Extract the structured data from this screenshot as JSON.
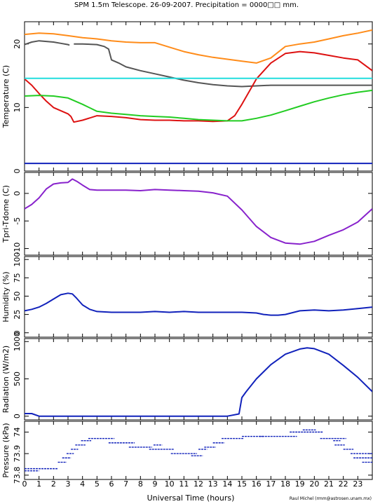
{
  "title": "SPM 1.5m Telescope. 26-09-2007. Precipitation = 0000□□ mm.",
  "credit": "Raul Michel (rmm@astrosen.unam.mx)",
  "xlabel": "Universal Time (hours)",
  "chart_data": [
    {
      "type": "line",
      "ylabel": "Temperature (C)",
      "xlim": [
        0,
        24
      ],
      "ylim": [
        0,
        23.5
      ],
      "yticks": [
        0,
        10,
        20
      ],
      "ytick_labels": [
        "0",
        "10",
        "20"
      ],
      "series": [
        {
          "color": "#ff8c1a",
          "x": [
            0,
            1,
            2,
            3,
            4,
            5,
            6,
            7,
            8,
            9,
            10,
            11,
            12,
            13,
            14,
            15,
            16,
            17,
            18,
            19,
            20,
            21,
            22,
            23,
            24
          ],
          "y": [
            21.5,
            21.7,
            21.6,
            21.3,
            21.0,
            20.8,
            20.5,
            20.3,
            20.2,
            20.2,
            19.5,
            18.8,
            18.3,
            17.9,
            17.6,
            17.3,
            17.0,
            17.8,
            19.6,
            20.0,
            20.3,
            20.8,
            21.3,
            21.7,
            22.2
          ]
        },
        {
          "color": "#555555",
          "x": [
            0,
            0.5,
            1,
            1.5,
            2,
            2.5,
            3,
            3.1
          ],
          "y": [
            19.9,
            20.3,
            20.5,
            20.4,
            20.3,
            20.1,
            19.9,
            19.8
          ]
        },
        {
          "color": "#555555",
          "x": [
            3.4,
            4,
            5,
            5.5,
            5.8,
            6,
            6.5,
            7,
            8,
            9,
            10,
            11,
            12,
            13,
            14,
            15,
            16,
            17,
            18,
            19,
            20,
            21,
            22,
            23,
            24
          ],
          "y": [
            20.0,
            20.0,
            19.9,
            19.6,
            19.2,
            17.5,
            17.0,
            16.4,
            15.8,
            15.3,
            14.8,
            14.3,
            13.9,
            13.6,
            13.4,
            13.3,
            13.4,
            13.5,
            13.5,
            13.5,
            13.5,
            13.5,
            13.5,
            13.5,
            13.5
          ]
        },
        {
          "color": "#dd1111",
          "x": [
            0,
            0.5,
            1,
            1.5,
            2,
            3,
            3.2,
            3.4,
            4,
            5,
            6,
            7,
            8,
            9,
            10,
            11,
            12,
            13,
            14,
            14.5,
            15,
            16,
            17,
            18,
            19,
            20,
            21,
            22,
            23,
            24
          ],
          "y": [
            14.5,
            13.5,
            12.2,
            11.0,
            10.0,
            9.0,
            8.6,
            7.7,
            8.0,
            8.7,
            8.6,
            8.4,
            8.1,
            8.0,
            8.0,
            7.9,
            7.9,
            7.8,
            7.9,
            8.7,
            10.5,
            14.5,
            17.0,
            18.5,
            18.8,
            18.6,
            18.2,
            17.8,
            17.5,
            15.8
          ]
        },
        {
          "color": "#22cc22",
          "x": [
            0,
            1,
            2,
            3,
            4,
            5,
            6,
            7,
            8,
            9,
            10,
            11,
            12,
            13,
            14,
            15,
            16,
            17,
            18,
            19,
            20,
            21,
            22,
            23,
            24
          ],
          "y": [
            11.8,
            11.9,
            11.8,
            11.5,
            10.5,
            9.4,
            9.1,
            8.9,
            8.7,
            8.6,
            8.5,
            8.3,
            8.1,
            8.0,
            7.9,
            7.9,
            8.3,
            8.8,
            9.5,
            10.2,
            10.9,
            11.5,
            12.0,
            12.4,
            12.7
          ]
        },
        {
          "color": "#22dddd",
          "x": [
            0,
            24
          ],
          "y": [
            14.6,
            14.6
          ]
        },
        {
          "color": "#1122bb",
          "x": [
            0,
            24
          ],
          "y": [
            1.2,
            1.2
          ]
        }
      ]
    },
    {
      "type": "line",
      "ylabel": "Tpri-Tdome (C)",
      "xlim": [
        0,
        24
      ],
      "ylim": [
        -11.2,
        3.8
      ],
      "yticks": [
        0,
        -5,
        -10
      ],
      "ytick_labels": [
        "0",
        "-5",
        "-10"
      ],
      "series": [
        {
          "color": "#8822cc",
          "x": [
            0,
            0.5,
            1,
            1.5,
            2,
            2.5,
            3,
            3.3,
            3.6,
            4,
            4.5,
            5,
            6,
            7,
            8,
            9,
            10,
            11,
            12,
            13,
            14,
            15,
            16,
            17,
            18,
            19,
            20,
            21,
            22,
            23,
            24
          ],
          "y": [
            -2.8,
            -2.0,
            -0.8,
            0.8,
            1.7,
            1.9,
            2.0,
            2.6,
            2.2,
            1.5,
            0.7,
            0.6,
            0.6,
            0.6,
            0.5,
            0.7,
            0.6,
            0.5,
            0.4,
            0.1,
            -0.5,
            -3.0,
            -6.0,
            -8.0,
            -9.0,
            -9.2,
            -8.7,
            -7.6,
            -6.6,
            -5.2,
            -2.8
          ]
        }
      ]
    },
    {
      "type": "line",
      "ylabel": "Humidity (%)",
      "xlim": [
        0,
        24
      ],
      "ylim": [
        -6,
        104
      ],
      "yticks": [
        0,
        25,
        50,
        75,
        100
      ],
      "ytick_labels": [
        "0",
        "25",
        "50",
        "75",
        "100"
      ],
      "series": [
        {
          "color": "#1122bb",
          "x": [
            0,
            0.5,
            1,
            1.5,
            2,
            2.5,
            3,
            3.3,
            3.6,
            4,
            4.5,
            5,
            6,
            7,
            8,
            9,
            10,
            11,
            12,
            13,
            14,
            15,
            16,
            16.5,
            17,
            17.5,
            18,
            19,
            20,
            21,
            22,
            23,
            24
          ],
          "y": [
            30,
            32,
            35,
            40,
            46,
            52,
            54,
            53,
            47,
            38,
            32,
            29,
            28,
            28,
            28,
            29,
            28,
            29,
            28,
            28,
            28,
            28,
            27,
            25,
            24,
            24,
            25,
            30,
            31,
            30,
            31,
            33,
            35
          ]
        }
      ]
    },
    {
      "type": "line",
      "ylabel": "Radiation (W/m2)",
      "xlim": [
        0,
        24
      ],
      "ylim": [
        -50,
        1040
      ],
      "yticks": [
        0,
        500,
        1000
      ],
      "ytick_labels": [
        "0",
        "500",
        "1000"
      ],
      "series": [
        {
          "color": "#1122bb",
          "x": [
            0,
            0.5,
            1,
            2,
            3,
            4,
            5,
            6,
            7,
            8,
            9,
            10,
            11,
            12,
            13,
            14,
            14.8,
            15,
            15.3,
            16,
            17,
            18,
            19,
            19.5,
            20,
            21,
            22,
            23,
            24
          ],
          "y": [
            35,
            35,
            0,
            0,
            0,
            0,
            0,
            0,
            0,
            0,
            0,
            0,
            0,
            0,
            0,
            0,
            30,
            250,
            330,
            500,
            690,
            830,
            900,
            915,
            905,
            830,
            680,
            520,
            330
          ]
        }
      ]
    },
    {
      "type": "scatter",
      "ylabel": "Pressure (kPa)",
      "xlim": [
        0,
        24
      ],
      "ylim": [
        73.78,
        74.05
      ],
      "yticks": [
        73.8,
        73.9,
        74
      ],
      "ytick_labels": [
        "73.8",
        "73.9",
        "74"
      ],
      "series": [
        {
          "color": "#1122bb",
          "segments": [
            [
              0.0,
              1.0,
              73.82
            ],
            [
              0.0,
              2.3,
              73.83
            ],
            [
              2.3,
              2.9,
              73.86
            ],
            [
              2.6,
              3.2,
              73.88
            ],
            [
              2.9,
              3.4,
              73.9
            ],
            [
              3.2,
              3.7,
              73.92
            ],
            [
              3.5,
              4.2,
              73.94
            ],
            [
              3.9,
              4.6,
              73.96
            ],
            [
              4.4,
              6.2,
              73.97
            ],
            [
              5.8,
              7.6,
              73.95
            ],
            [
              7.2,
              8.8,
              73.93
            ],
            [
              8.6,
              10.3,
              73.92
            ],
            [
              8.9,
              9.5,
              73.94
            ],
            [
              10.1,
              11.9,
              73.9
            ],
            [
              11.5,
              12.3,
              73.89
            ],
            [
              12.0,
              12.6,
              73.92
            ],
            [
              12.4,
              13.2,
              73.93
            ],
            [
              13.0,
              13.8,
              73.95
            ],
            [
              13.6,
              15.1,
              73.97
            ],
            [
              15.0,
              16.5,
              73.98
            ],
            [
              16.2,
              18.8,
              73.98
            ],
            [
              18.3,
              20.6,
              74.0
            ],
            [
              19.2,
              20.1,
              74.01
            ],
            [
              20.4,
              22.2,
              73.97
            ],
            [
              21.3,
              21.8,
              73.96
            ],
            [
              21.4,
              22.1,
              73.94
            ],
            [
              22.0,
              22.7,
              73.92
            ],
            [
              22.5,
              24.0,
              73.9
            ],
            [
              22.7,
              24.0,
              73.88
            ],
            [
              23.3,
              24.0,
              73.86
            ]
          ]
        }
      ]
    }
  ]
}
